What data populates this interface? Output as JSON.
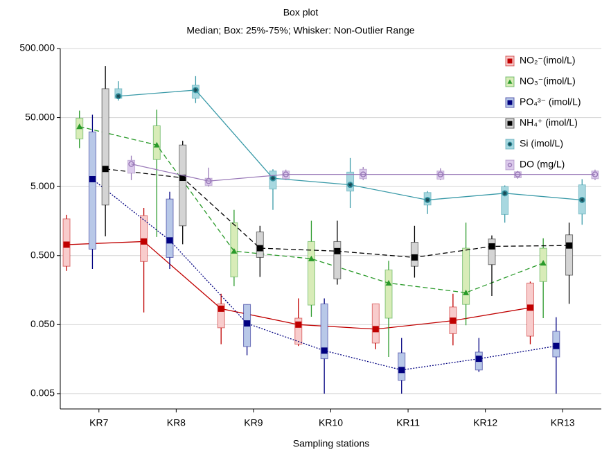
{
  "chart_data": {
    "type": "box",
    "title": "Box plot",
    "subtitle": "Median; Box: 25%-75%; Whisker: Non-Outlier Range",
    "x_label": "Sampling stations",
    "categories": [
      "KR7",
      "KR8",
      "KR9",
      "KR10",
      "KR11",
      "KR12",
      "KR13"
    ],
    "log_scale": true,
    "ylim": [
      0.003,
      500
    ],
    "yticks": [
      0.005,
      {
        "value": 0.05,
        "label": "0.050"
      },
      {
        "value": 0.5,
        "label": "0.500"
      },
      {
        "value": 5,
        "label": "5.000"
      },
      {
        "value": 50,
        "label": "50.000"
      },
      {
        "value": 500,
        "label": "500.000"
      }
    ],
    "grid": true,
    "legend": "upper right",
    "series": [
      {
        "name": "NO₂⁻(imol/L)",
        "color": "#c00000",
        "box_color": "#f8cccc",
        "line": "solid",
        "marker": "square",
        "median": [
          0.72,
          0.8,
          0.085,
          0.05,
          0.043,
          0.057,
          0.088
        ],
        "q1": [
          0.35,
          0.41,
          0.045,
          0.026,
          0.027,
          0.037,
          0.034
        ],
        "q3": [
          1.7,
          1.9,
          0.1,
          0.062,
          0.1,
          0.09,
          0.2
        ],
        "min": [
          0.3,
          0.075,
          0.026,
          0.0245,
          0.022,
          0.025,
          0.026
        ],
        "max": [
          1.95,
          2.45,
          0.14,
          0.12,
          0.1,
          0.14,
          0.21
        ]
      },
      {
        "name": "NO₃⁻(imol/L)",
        "color": "#2a9a2a",
        "box_color": "#d8ecb8",
        "line": "dashed",
        "marker": "triangle",
        "median": [
          37,
          20,
          0.58,
          0.45,
          0.2,
          0.145,
          0.39
        ],
        "q1": [
          24.5,
          12.3,
          0.245,
          0.096,
          0.062,
          0.098,
          0.21
        ],
        "q3": [
          49,
          38,
          1.5,
          0.8,
          0.31,
          0.64,
          0.64
        ],
        "min": [
          18,
          0.93,
          0.18,
          0.065,
          0.017,
          0.049,
          0.062
        ],
        "max": [
          63,
          65,
          2.3,
          1.6,
          0.42,
          1.5,
          0.89
        ]
      },
      {
        "name": "PO₄³⁻ (imol/L)",
        "color": "#000080",
        "box_color": "#b8c8e8",
        "line": "dotted",
        "marker": "square",
        "median": [
          6.4,
          0.83,
          0.052,
          0.021,
          0.011,
          0.016,
          0.0245
        ],
        "q1": [
          0.62,
          0.47,
          0.024,
          0.016,
          0.0078,
          0.011,
          0.017
        ],
        "q3": [
          31,
          3.3,
          0.098,
          0.1,
          0.0195,
          0.02,
          0.04
        ],
        "min": [
          0.32,
          0.32,
          0.018,
          0.005,
          0.005,
          0.0103,
          0.005
        ],
        "max": [
          55,
          4.2,
          0.098,
          0.12,
          0.032,
          0.032,
          0.064
        ]
      },
      {
        "name": "NH₄⁺ (imol/L)",
        "color": "#000000",
        "box_color": "#d4d4d4",
        "line": "dashed",
        "marker": "square",
        "median": [
          9,
          6.7,
          0.64,
          0.58,
          0.47,
          0.68,
          0.7
        ],
        "q1": [
          2.7,
          1.35,
          0.47,
          0.23,
          0.35,
          0.37,
          0.26
        ],
        "q3": [
          131,
          20,
          1.1,
          0.8,
          0.78,
          0.87,
          1.0
        ],
        "min": [
          0.95,
          0.73,
          0.245,
          0.19,
          0.24,
          0.13,
          0.1
        ],
        "max": [
          280,
          23,
          1.35,
          1.6,
          1.35,
          0.98,
          1.5
        ]
      },
      {
        "name": "Si (imol/L)",
        "color": "#3a9aa8",
        "box_color": "#a8d8e0",
        "line": "solid",
        "marker": "star",
        "median": [
          102,
          125,
          6.6,
          5.3,
          3.2,
          4.0,
          3.2
        ],
        "q1": [
          95,
          95,
          4.6,
          4.3,
          2.7,
          1.97,
          2.0
        ],
        "q3": [
          131,
          147,
          8.4,
          8.1,
          4.1,
          5,
          5.3
        ],
        "min": [
          88,
          81,
          2.3,
          2.45,
          2.0,
          1.5,
          1.4
        ],
        "max": [
          168,
          199,
          8.9,
          13,
          4.3,
          5.2,
          6.4
        ]
      },
      {
        "name": "DO (mg/L)",
        "color": "#9a7ab8",
        "box_color": "#dccbec",
        "line": "solid",
        "marker": "circle",
        "median": [
          10.6,
          6.0,
          7.5,
          7.5,
          7.5,
          7.5,
          7.5
        ],
        "q1": [
          7.8,
          5.2,
          6.5,
          6.5,
          6.4,
          6.7,
          6.5
        ],
        "q3": [
          12,
          6.6,
          8.4,
          8.9,
          8.4,
          8.2,
          8.4
        ],
        "min": [
          6.2,
          5,
          6.2,
          6.2,
          6.2,
          6.5,
          6.2
        ],
        "max": [
          14,
          9.4,
          8.8,
          9.6,
          9.2,
          8.4,
          8.8
        ]
      }
    ]
  }
}
